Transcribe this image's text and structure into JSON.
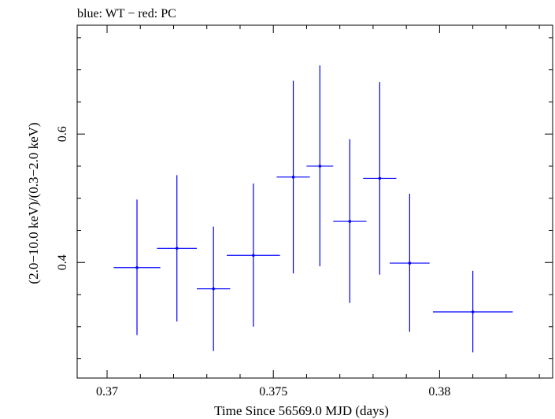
{
  "chart_data": {
    "type": "scatter",
    "title": "blue: WT − red: PC",
    "xlabel": "Time Since 56569.0 MJD (days)",
    "ylabel": "(2.0−10.0 keV)/(0.3−2.0 keV)",
    "xlim": [
      0.3691,
      0.3834
    ],
    "ylim": [
      0.22,
      0.7695
    ],
    "x_ticks": [
      {
        "value": 0.37,
        "label": "0.37"
      },
      {
        "value": 0.375,
        "label": "0.375"
      },
      {
        "value": 0.38,
        "label": "0.38"
      }
    ],
    "y_ticks": [
      {
        "value": 0.4,
        "label": "0.4"
      },
      {
        "value": 0.6,
        "label": "0.6"
      }
    ],
    "grid": false,
    "series": [
      {
        "color": "#0000ff",
        "points": [
          {
            "x": 0.3709,
            "xerr": 0.0007,
            "y": 0.392,
            "yerr_low": 0.105,
            "yerr_high": 0.106
          },
          {
            "x": 0.3721,
            "xerr": 0.0006,
            "y": 0.422,
            "yerr_low": 0.114,
            "yerr_high": 0.114
          },
          {
            "x": 0.3732,
            "xerr": 0.0005,
            "y": 0.359,
            "yerr_low": 0.097,
            "yerr_high": 0.097
          },
          {
            "x": 0.3744,
            "xerr": 0.0008,
            "y": 0.411,
            "yerr_low": 0.111,
            "yerr_high": 0.112
          },
          {
            "x": 0.3756,
            "xerr": 0.0005,
            "y": 0.533,
            "yerr_low": 0.15,
            "yerr_high": 0.15
          },
          {
            "x": 0.3764,
            "xerr": 0.0004,
            "y": 0.55,
            "yerr_low": 0.156,
            "yerr_high": 0.157
          },
          {
            "x": 0.3773,
            "xerr": 0.0005,
            "y": 0.464,
            "yerr_low": 0.127,
            "yerr_high": 0.128
          },
          {
            "x": 0.3782,
            "xerr": 0.0005,
            "y": 0.531,
            "yerr_low": 0.15,
            "yerr_high": 0.15
          },
          {
            "x": 0.3791,
            "xerr": 0.0006,
            "y": 0.399,
            "yerr_low": 0.107,
            "yerr_high": 0.108
          },
          {
            "x": 0.381,
            "xerr": 0.0012,
            "y": 0.323,
            "yerr_low": 0.063,
            "yerr_high": 0.064
          }
        ]
      }
    ]
  }
}
